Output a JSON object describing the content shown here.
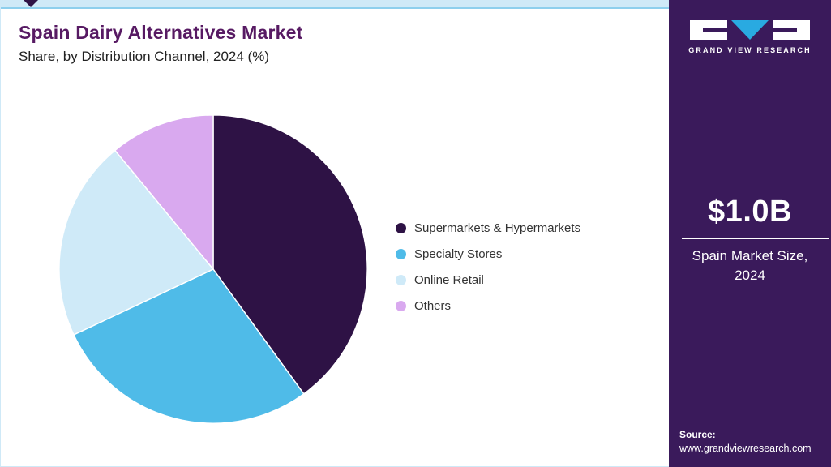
{
  "header": {
    "title": "Spain Dairy Alternatives Market",
    "subtitle": "Share, by Distribution Channel, 2024 (%)"
  },
  "chart_data": {
    "type": "pie",
    "title": "Spain Dairy Alternatives Market Share, by Distribution Channel, 2024 (%)",
    "categories": [
      "Supermarkets & Hypermarkets",
      "Specialty Stores",
      "Online Retail",
      "Others"
    ],
    "values": [
      40,
      28,
      21,
      11
    ],
    "unit": "%",
    "colors": [
      "#2e1245",
      "#4fbbe8",
      "#cfeaf8",
      "#d9a9ef"
    ],
    "start_angle_deg": 0,
    "direction": "clockwise",
    "legend_position": "right",
    "slice_border_color": "#ffffff"
  },
  "sidebar": {
    "brand": "GRAND VIEW RESEARCH",
    "market_size": "$1.0B",
    "market_size_label": "Spain Market Size, 2024",
    "source_label": "Source:",
    "source_url": "www.grandviewresearch.com",
    "background": "#3a1a5b",
    "accent": "#29aae1"
  }
}
